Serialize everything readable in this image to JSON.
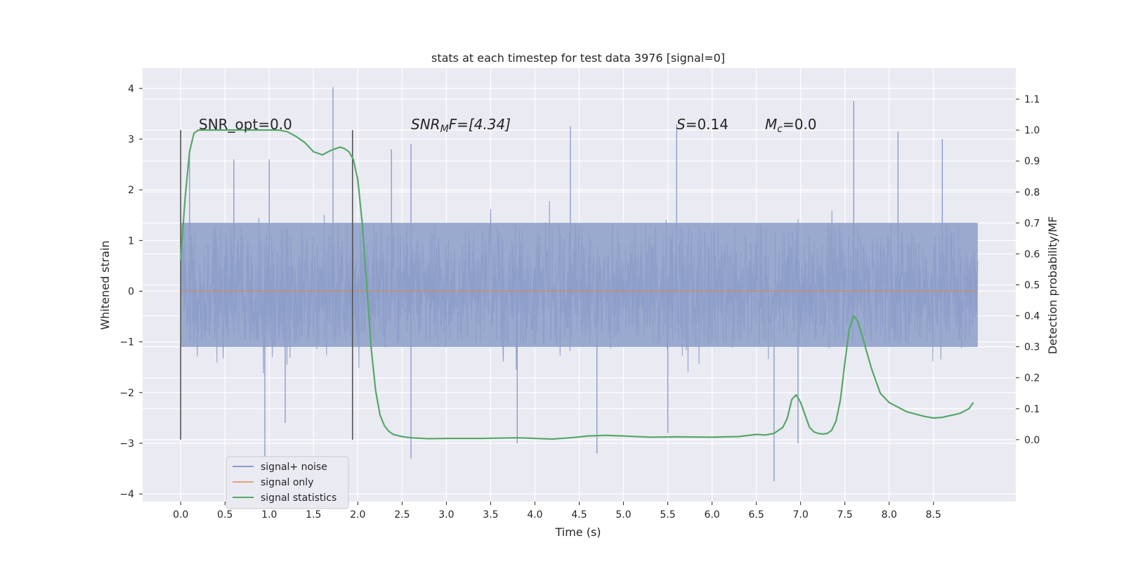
{
  "chart_data": {
    "type": "line",
    "title": "stats at each timestep for test data 3976 [signal=0]",
    "xlabel": "Time (s)",
    "ylabel": "Whitened strain",
    "y2label": "Detection probability/MF",
    "xlim": [
      -0.43,
      9.43
    ],
    "ylim": [
      -4.15,
      4.4
    ],
    "y2lim": [
      -0.2,
      1.2
    ],
    "xticks": [
      0.0,
      0.5,
      1.0,
      1.5,
      2.0,
      2.5,
      3.0,
      3.5,
      4.0,
      4.5,
      5.0,
      5.5,
      6.0,
      6.5,
      7.0,
      7.5,
      8.0,
      8.5
    ],
    "xtick_labels": [
      "0.0",
      "0.5",
      "1.0",
      "1.5",
      "2.0",
      "2.5",
      "3.0",
      "3.5",
      "4.0",
      "4.5",
      "5.0",
      "5.5",
      "6.0",
      "6.5",
      "7.0",
      "7.5",
      "8.0",
      "8.5"
    ],
    "yticks": [
      -4,
      -3,
      -2,
      -1,
      0,
      1,
      2,
      3,
      4
    ],
    "ytick_labels": [
      "−4",
      "−3",
      "−2",
      "−1",
      "0",
      "1",
      "2",
      "3",
      "4"
    ],
    "y2ticks": [
      0.0,
      0.1,
      0.2,
      0.3,
      0.4,
      0.5,
      0.6,
      0.7,
      0.8,
      0.9,
      1.0,
      1.1
    ],
    "y2tick_labels": [
      "0.0",
      "0.1",
      "0.2",
      "0.3",
      "0.4",
      "0.5",
      "0.6",
      "0.7",
      "0.8",
      "0.9",
      "1.0",
      "1.1"
    ],
    "grid": true,
    "legend_position": "bottom-left",
    "annotations": {
      "snr_opt": "SNR_opt=0.0",
      "snr_mf_main": "SNR",
      "snr_mf_sub": "M",
      "snr_mf_tail": "F=[4.34]",
      "s_sym": "S",
      "s_val": "=0.14",
      "mc_sym": "M",
      "mc_sub": "c",
      "mc_val": "=0.0"
    },
    "vertical_markers": [
      0.0,
      1.94
    ],
    "series": [
      {
        "name": "signal+ noise",
        "color": "#8c9ec8",
        "axis": "left",
        "x_range": [
          0.0,
          9.0
        ],
        "core_band": [
          -1.1,
          1.35
        ],
        "typical_spike_range": [
          -2.5,
          2.7
        ],
        "max": 4.02,
        "min": -3.78,
        "peaks": [
          [
            0.1,
            2.7
          ],
          [
            0.6,
            2.6
          ],
          [
            1.0,
            2.6
          ],
          [
            1.72,
            4.02
          ],
          [
            2.38,
            2.8
          ],
          [
            2.6,
            2.9
          ],
          [
            4.4,
            3.25
          ],
          [
            5.6,
            3.3
          ],
          [
            7.6,
            3.75
          ],
          [
            8.1,
            3.15
          ],
          [
            8.6,
            3.0
          ],
          [
            0.95,
            -3.4
          ],
          [
            1.18,
            -2.6
          ],
          [
            2.6,
            -3.3
          ],
          [
            3.8,
            -3.0
          ],
          [
            4.7,
            -3.2
          ],
          [
            6.7,
            -3.75
          ],
          [
            6.97,
            -3.0
          ],
          [
            5.5,
            -2.8
          ]
        ]
      },
      {
        "name": "signal only",
        "color": "#dd8452",
        "axis": "left",
        "x": [
          0.0,
          9.0
        ],
        "y": [
          0.0,
          0.0
        ]
      },
      {
        "name": "signal statistics",
        "color": "#55a868",
        "axis": "right",
        "x": [
          0.0,
          0.05,
          0.1,
          0.15,
          0.2,
          0.3,
          0.5,
          0.8,
          1.0,
          1.1,
          1.2,
          1.3,
          1.4,
          1.5,
          1.6,
          1.7,
          1.8,
          1.85,
          1.9,
          1.95,
          2.0,
          2.05,
          2.1,
          2.15,
          2.2,
          2.25,
          2.3,
          2.35,
          2.4,
          2.5,
          2.6,
          2.8,
          3.0,
          3.4,
          3.8,
          4.2,
          4.4,
          4.6,
          4.8,
          5.0,
          5.3,
          5.6,
          6.0,
          6.3,
          6.5,
          6.6,
          6.7,
          6.8,
          6.85,
          6.9,
          6.95,
          7.0,
          7.05,
          7.1,
          7.15,
          7.2,
          7.25,
          7.3,
          7.35,
          7.4,
          7.45,
          7.5,
          7.55,
          7.6,
          7.65,
          7.7,
          7.75,
          7.8,
          7.85,
          7.9,
          8.0,
          8.2,
          8.4,
          8.5,
          8.6,
          8.8,
          8.9,
          8.95
        ],
        "y": [
          0.58,
          0.78,
          0.93,
          0.99,
          1.0,
          1.0,
          1.0,
          1.0,
          1.0,
          1.0,
          0.995,
          0.98,
          0.96,
          0.93,
          0.92,
          0.935,
          0.945,
          0.94,
          0.93,
          0.905,
          0.84,
          0.7,
          0.5,
          0.3,
          0.16,
          0.08,
          0.045,
          0.027,
          0.017,
          0.01,
          0.006,
          0.003,
          0.004,
          0.004,
          0.006,
          0.002,
          0.006,
          0.012,
          0.014,
          0.012,
          0.008,
          0.009,
          0.008,
          0.01,
          0.017,
          0.015,
          0.02,
          0.04,
          0.07,
          0.13,
          0.145,
          0.12,
          0.08,
          0.04,
          0.025,
          0.02,
          0.018,
          0.02,
          0.03,
          0.06,
          0.13,
          0.25,
          0.36,
          0.4,
          0.38,
          0.33,
          0.28,
          0.23,
          0.19,
          0.15,
          0.12,
          0.09,
          0.075,
          0.07,
          0.072,
          0.085,
          0.1,
          0.12
        ]
      }
    ]
  }
}
